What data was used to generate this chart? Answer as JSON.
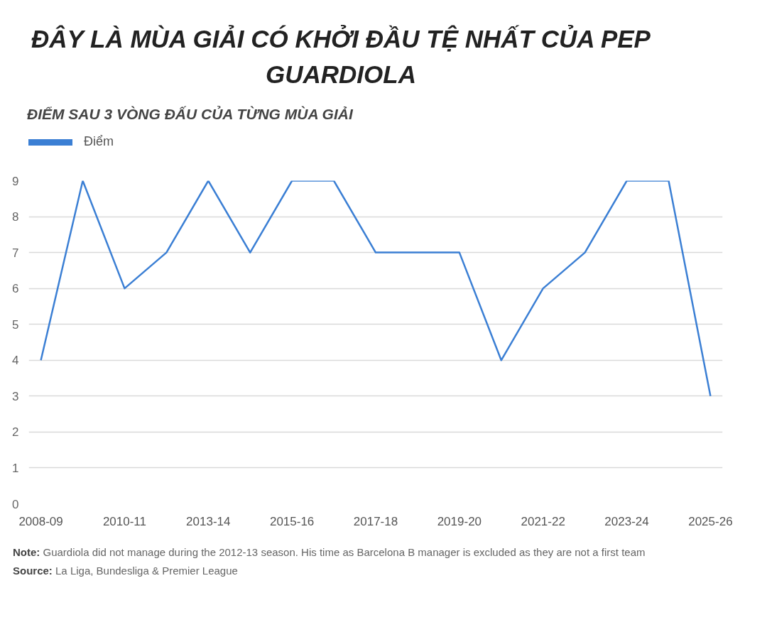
{
  "chart_data": {
    "type": "line",
    "title": "ĐÂY LÀ MÙA GIẢI CÓ KHỞI ĐẦU TỆ NHẤT CỦA PEP GUARDIOLA",
    "subtitle": "ĐIỂM SAU 3 VÒNG ĐẤU CỦA TỪNG MÙA GIẢI",
    "categories": [
      "2008-09",
      null,
      "2010-11",
      null,
      "2013-14",
      null,
      "2015-16",
      null,
      "2017-18",
      null,
      "2019-20",
      null,
      "2021-22",
      null,
      "2023-24",
      null,
      "2025-26"
    ],
    "series": [
      {
        "name": "Điểm",
        "color": "#3b7fd4",
        "values": [
          4,
          9,
          6,
          7,
          9,
          7,
          9,
          9,
          7,
          7,
          7,
          4,
          6,
          7,
          9,
          9,
          3
        ]
      }
    ],
    "ylim": [
      0,
      9
    ],
    "yticks": [
      0,
      1,
      2,
      3,
      4,
      5,
      6,
      7,
      8,
      9
    ],
    "grid": "y",
    "legend": "top left",
    "line_style": "solid",
    "annotations": [
      "Note: Guardiola did not manage during the 2012-13 season. His time as Barcelona B manager is excluded as they are not a first team",
      "Source: La Liga, Bundesliga & Premier League"
    ]
  }
}
